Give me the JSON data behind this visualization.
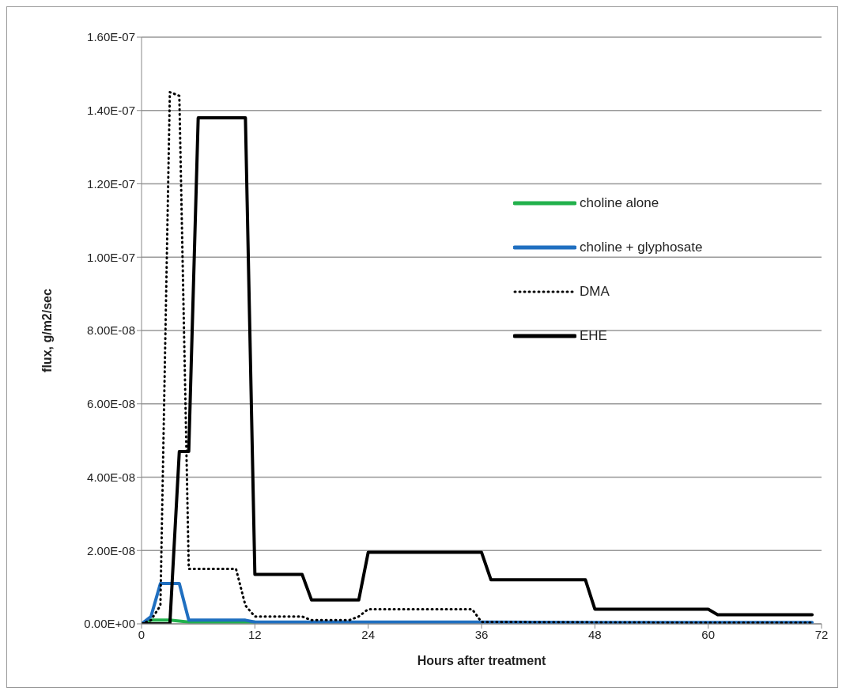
{
  "chart_data": {
    "type": "line",
    "xlabel": "Hours after treatment",
    "ylabel": "flux, g/m2/sec",
    "xlim": [
      0,
      72
    ],
    "xticks": [
      0,
      12,
      24,
      36,
      48,
      60,
      72
    ],
    "ylim": [
      0,
      1.6e-07
    ],
    "yticks": [
      {
        "value": 0,
        "label": "0.00E+00"
      },
      {
        "value": 2e-08,
        "label": "2.00E-08"
      },
      {
        "value": 4e-08,
        "label": "4.00E-08"
      },
      {
        "value": 6e-08,
        "label": "6.00E-08"
      },
      {
        "value": 8e-08,
        "label": "8.00E-08"
      },
      {
        "value": 1e-07,
        "label": "1.00E-07"
      },
      {
        "value": 1.2e-07,
        "label": "1.20E-07"
      },
      {
        "value": 1.4e-07,
        "label": "1.40E-07"
      },
      {
        "value": 1.6e-07,
        "label": "1.60E-07"
      }
    ],
    "grid": "y",
    "legend": "right",
    "marker": "none",
    "series": [
      {
        "name": "choline alone",
        "color": "#22b14c",
        "line_style": "solid",
        "x": [
          0,
          1,
          3,
          5,
          12
        ],
        "values": [
          0,
          1e-09,
          1e-09,
          5e-10,
          5e-10
        ]
      },
      {
        "name": "choline + glyphosate",
        "color": "#1f6fc0",
        "line_style": "solid",
        "x": [
          0,
          1,
          2,
          4,
          5,
          11,
          12,
          24,
          36,
          48,
          60,
          71
        ],
        "values": [
          0,
          2e-09,
          1.1e-08,
          1.1e-08,
          1e-09,
          1e-09,
          5e-10,
          5e-10,
          5e-10,
          4e-10,
          4e-10,
          4e-10
        ]
      },
      {
        "name": "DMA",
        "color": "#000000",
        "line_style": "dotted",
        "x": [
          0,
          1,
          2,
          3,
          4,
          5,
          10,
          11,
          12,
          17,
          18,
          22,
          23,
          24,
          35,
          36,
          48,
          60,
          71
        ],
        "values": [
          0,
          1e-09,
          5e-09,
          1.45e-07,
          1.44e-07,
          1.5e-08,
          1.5e-08,
          5e-09,
          2e-09,
          2e-09,
          1e-09,
          1e-09,
          2e-09,
          4e-09,
          4e-09,
          5e-10,
          4e-10,
          3e-10,
          3e-10
        ]
      },
      {
        "name": "EHE",
        "color": "#000000",
        "line_style": "solid",
        "x": [
          0,
          3,
          4,
          5,
          6,
          11,
          12,
          17,
          18,
          23,
          24,
          36,
          37,
          47,
          48,
          60,
          61,
          71
        ],
        "values": [
          0,
          0,
          4.7e-08,
          4.7e-08,
          1.38e-07,
          1.38e-07,
          1.35e-08,
          1.35e-08,
          6.5e-09,
          6.5e-09,
          1.95e-08,
          1.95e-08,
          1.2e-08,
          1.2e-08,
          4e-09,
          4e-09,
          2.5e-09,
          2.5e-09
        ]
      }
    ]
  }
}
